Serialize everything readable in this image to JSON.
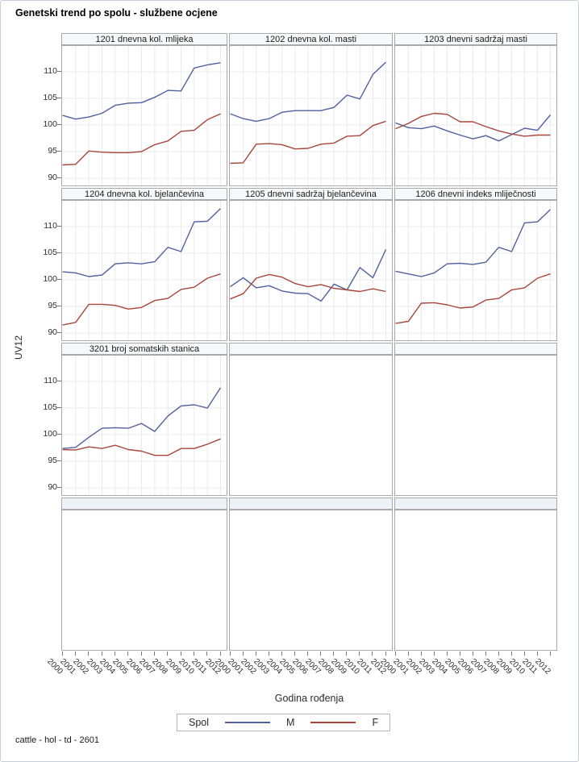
{
  "page": {
    "title": "Genetski trend po spolu - službene ocjene",
    "footer": "cattle - hol - td - 2601"
  },
  "chart_data": {
    "type": "line",
    "title": "Genetski trend po spolu - službene ocjene",
    "xlabel": "Godina rođenja",
    "ylabel": "UV12",
    "x_categories": [
      "2000",
      "2001",
      "2002",
      "2003",
      "2004",
      "2005",
      "2006",
      "2007",
      "2008",
      "2009",
      "2010",
      "2011",
      "2012"
    ],
    "yticks": [
      90,
      95,
      100,
      105,
      110
    ],
    "ylim": [
      88.2,
      114.9
    ],
    "layout": {
      "grid_rows": 4,
      "grid_cols": 3,
      "gridlines": true,
      "legend_position": "bottom"
    },
    "legend": {
      "title": "Spol",
      "entries": [
        "M",
        "F"
      ]
    },
    "colors": {
      "M": "#50619e",
      "F": "#a8463c",
      "gridline": "#ebebeb",
      "panel_border": "#a9a9a9"
    },
    "panels": [
      {
        "row": 1,
        "col": 1,
        "header": "1201 dnevna kol. mlijeka",
        "series": {
          "M": [
            101.8,
            101.1,
            101.5,
            102.2,
            103.7,
            104.1,
            104.2,
            105.2,
            106.5,
            106.4,
            110.7,
            111.3,
            111.7
          ],
          "F": [
            92.5,
            92.6,
            95.1,
            94.9,
            94.8,
            94.8,
            95.0,
            96.3,
            97.0,
            98.8,
            99.0,
            101.0,
            102.1
          ]
        }
      },
      {
        "row": 1,
        "col": 2,
        "header": "1202 dnevna kol. masti",
        "series": {
          "M": [
            102.1,
            101.2,
            100.7,
            101.2,
            102.4,
            102.7,
            102.7,
            102.7,
            103.3,
            105.6,
            104.9,
            109.5,
            111.8
          ],
          "F": [
            92.8,
            92.9,
            96.4,
            96.5,
            96.3,
            95.5,
            95.6,
            96.4,
            96.6,
            97.9,
            98.0,
            99.9,
            100.7
          ]
        }
      },
      {
        "row": 1,
        "col": 3,
        "header": "1203 dnevni sadržaj masti",
        "series": {
          "M": [
            100.4,
            99.5,
            99.3,
            99.8,
            98.9,
            98.1,
            97.4,
            98.0,
            97.0,
            98.2,
            99.4,
            99.0,
            101.9
          ],
          "F": [
            99.3,
            100.3,
            101.6,
            102.2,
            102.0,
            100.6,
            100.6,
            99.7,
            98.9,
            98.3,
            97.9,
            98.1,
            98.1
          ]
        }
      },
      {
        "row": 2,
        "col": 1,
        "header": "1204 dnevna kol. bjelančevina",
        "series": {
          "M": [
            101.5,
            101.3,
            100.6,
            100.9,
            103.0,
            103.2,
            103.0,
            103.4,
            106.1,
            105.3,
            110.9,
            111.0,
            113.4
          ],
          "F": [
            91.5,
            92.0,
            95.4,
            95.4,
            95.2,
            94.5,
            94.8,
            96.1,
            96.5,
            98.2,
            98.6,
            100.3,
            101.1
          ]
        }
      },
      {
        "row": 2,
        "col": 2,
        "header": "1205 dnevni sadržaj bjelančevina",
        "series": {
          "M": [
            98.7,
            100.4,
            98.5,
            98.9,
            97.9,
            97.5,
            97.4,
            96.0,
            99.2,
            98.1,
            102.3,
            100.4,
            105.7
          ],
          "F": [
            96.4,
            97.4,
            100.3,
            101.0,
            100.5,
            99.3,
            98.7,
            99.1,
            98.4,
            98.1,
            97.8,
            98.3,
            97.8
          ]
        }
      },
      {
        "row": 2,
        "col": 3,
        "header": "1206 dnevni indeks mliječnosti",
        "series": {
          "M": [
            101.6,
            101.1,
            100.6,
            101.3,
            103.0,
            103.1,
            102.9,
            103.3,
            106.1,
            105.3,
            110.7,
            110.9,
            113.2
          ],
          "F": [
            91.8,
            92.2,
            95.6,
            95.7,
            95.3,
            94.7,
            94.9,
            96.2,
            96.5,
            98.1,
            98.5,
            100.3,
            101.1
          ]
        }
      },
      {
        "row": 3,
        "col": 1,
        "header": "3201 broj somatskih stanica",
        "series": {
          "M": [
            97.4,
            97.6,
            99.5,
            101.2,
            101.3,
            101.2,
            102.1,
            100.6,
            103.5,
            105.4,
            105.6,
            105.0,
            108.8
          ],
          "F": [
            97.2,
            97.1,
            97.7,
            97.4,
            98.0,
            97.2,
            96.9,
            96.1,
            96.1,
            97.4,
            97.4,
            98.2,
            99.2
          ]
        }
      },
      {
        "row": 3,
        "col": 2,
        "header": "",
        "series": null
      },
      {
        "row": 3,
        "col": 3,
        "header": "",
        "series": null
      },
      {
        "row": 4,
        "col": 1,
        "header": "",
        "series": null
      },
      {
        "row": 4,
        "col": 2,
        "header": "",
        "series": null
      },
      {
        "row": 4,
        "col": 3,
        "header": "",
        "series": null
      }
    ]
  }
}
